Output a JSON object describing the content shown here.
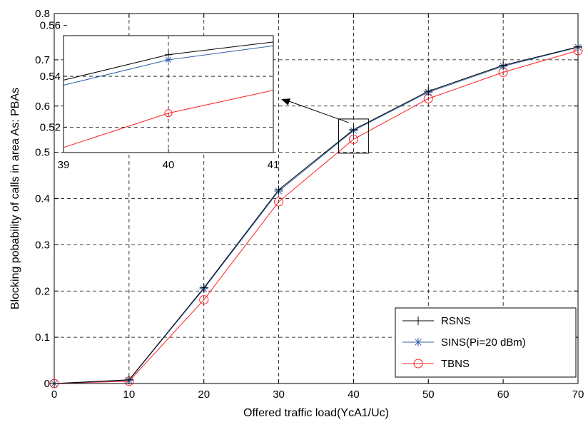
{
  "chart_data": {
    "type": "line",
    "title": "",
    "xlabel": "Offered traffic load(YcA1/Uc)",
    "ylabel": "Blocking pobability of calls in area As: PBAs",
    "xlim": [
      0,
      70
    ],
    "ylim": [
      0,
      0.8
    ],
    "xticks": [
      0,
      10,
      20,
      30,
      40,
      50,
      60,
      70
    ],
    "yticks": [
      0,
      0.1,
      0.2,
      0.3,
      0.4,
      0.5,
      0.6,
      0.7,
      0.8
    ],
    "grid": true,
    "legend_position": "bottom-right",
    "x": [
      0,
      10,
      20,
      30,
      40,
      50,
      60,
      70
    ],
    "series": [
      {
        "name": "RSNS",
        "color": "#000000",
        "marker": "plus",
        "values": [
          0,
          0.008,
          0.207,
          0.419,
          0.549,
          0.632,
          0.688,
          0.728
        ]
      },
      {
        "name": "SINS(Pi=20 dBm)",
        "color": "#2f5fa8",
        "marker": "star",
        "values": [
          0,
          0.007,
          0.205,
          0.416,
          0.547,
          0.63,
          0.686,
          0.727
        ]
      },
      {
        "name": "TBNS",
        "color": "#ff2020",
        "marker": "circle",
        "values": [
          0,
          0.005,
          0.181,
          0.393,
          0.528,
          0.616,
          0.673,
          0.72
        ]
      }
    ],
    "inset": {
      "xlim": [
        39,
        41
      ],
      "ylim": [
        0.51,
        0.556
      ],
      "xticks": [
        39,
        40,
        41
      ],
      "yticks": [
        0.52,
        0.54,
        0.56
      ],
      "ytick_labels": [
        "0.52",
        "0.54",
        "0.56"
      ],
      "zoom_box": {
        "x": [
          38,
          42
        ],
        "y": [
          0.498,
          0.572
        ]
      },
      "series": [
        {
          "name": "RSNS",
          "color": "#000000",
          "marker": "plus",
          "points": [
            [
              39,
              0.5385
            ],
            [
              40,
              0.5485
            ],
            [
              41,
              0.5535
            ]
          ]
        },
        {
          "name": "SINS(Pi=20 dBm)",
          "color": "#2f5fa8",
          "marker": "star",
          "points": [
            [
              39,
              0.5365
            ],
            [
              40,
              0.5465
            ],
            [
              41,
              0.552
            ]
          ]
        },
        {
          "name": "TBNS",
          "color": "#ff2020",
          "marker": "circle",
          "points": [
            [
              39,
              0.512
            ],
            [
              40,
              0.5255
            ],
            [
              41,
              0.5345
            ]
          ]
        }
      ]
    }
  }
}
